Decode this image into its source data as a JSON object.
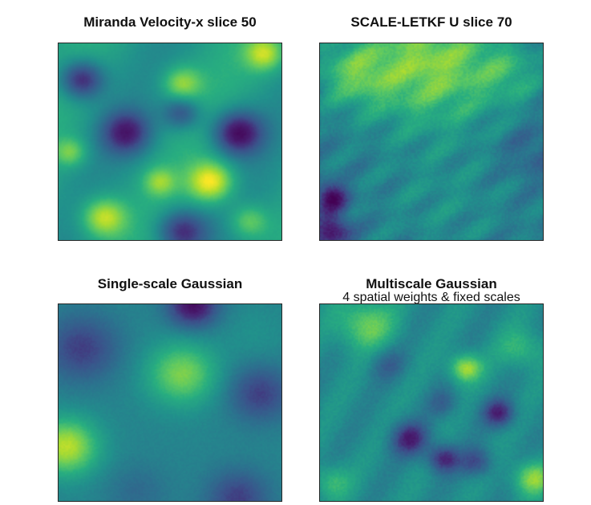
{
  "colormap": "viridis",
  "colors": {
    "low": "#440154",
    "mid": "#21918c",
    "high": "#fde725"
  },
  "panels": [
    {
      "title": "Miranda Velocity-x slice 50",
      "subtitle": ""
    },
    {
      "title": "SCALE-LETKF U slice 70",
      "subtitle": ""
    },
    {
      "title": "Single-scale Gaussian",
      "subtitle": ""
    },
    {
      "title": "Multiscale Gaussian",
      "subtitle": "4 spatial weights & fixed scales"
    }
  ]
}
